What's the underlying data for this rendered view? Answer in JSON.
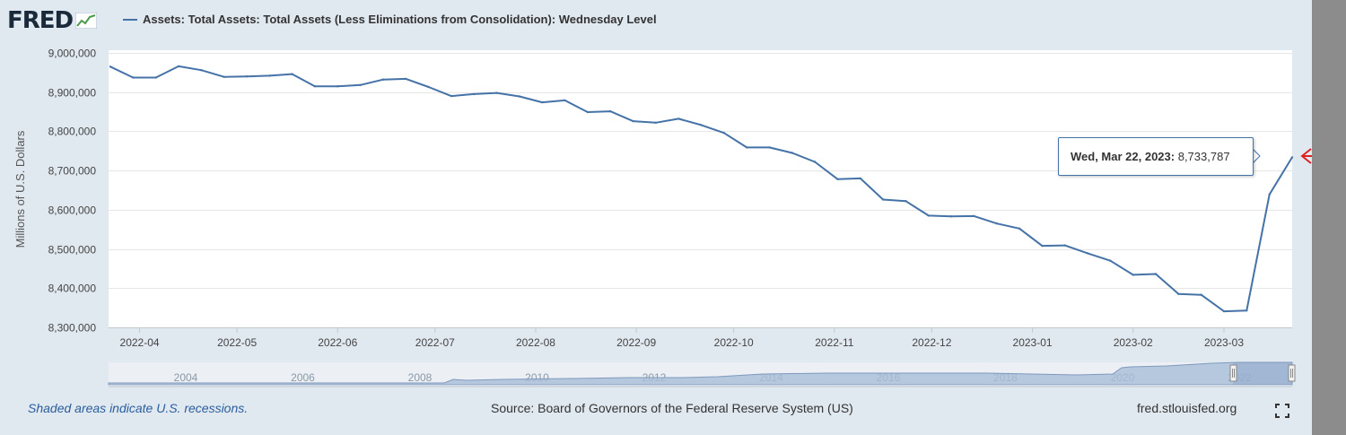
{
  "logo": {
    "text": "FRED"
  },
  "footer": {
    "recession_note": "Shaded areas indicate U.S. recessions.",
    "source": "Source: Board of Governors of the Federal Reserve System (US)",
    "site": "fred.stlouisfed.org",
    "fullscreen_icon": "fullscreen-icon"
  },
  "tooltip": {
    "date": "Wed, Mar 22, 2023:",
    "value": "8,733,787"
  },
  "annotation": {
    "arrow_color": "#e02020",
    "icon": "left-arrow-icon"
  },
  "colors": {
    "series": "#4572a7",
    "panel": "#e1e9f0",
    "navigator_fill": "#a9bed8"
  },
  "navigator": {
    "labels": [
      "2004",
      "2006",
      "2008",
      "2010",
      "2012",
      "2014",
      "2016",
      "2018",
      "2020",
      "2022"
    ]
  },
  "chart_data": {
    "type": "line",
    "title": "",
    "xlabel": "",
    "ylabel": "Millions of U.S. Dollars",
    "ylim": [
      8300000,
      9000000
    ],
    "y_ticks": [
      "8,300,000",
      "8,400,000",
      "8,500,000",
      "8,600,000",
      "8,700,000",
      "8,800,000",
      "8,900,000",
      "9,000,000"
    ],
    "x_ticks": [
      "2022-04",
      "2022-05",
      "2022-06",
      "2022-07",
      "2022-08",
      "2022-09",
      "2022-10",
      "2022-11",
      "2022-12",
      "2023-01",
      "2023-02",
      "2023-03"
    ],
    "xlim": [
      "2022-03-23",
      "2023-03-22"
    ],
    "grid": true,
    "legend_position": "top",
    "series": [
      {
        "name": "Assets: Total Assets: Total Assets (Less Eliminations from Consolidation): Wednesday Level",
        "x": [
          "2022-03-23",
          "2022-03-30",
          "2022-04-06",
          "2022-04-13",
          "2022-04-20",
          "2022-04-27",
          "2022-05-04",
          "2022-05-11",
          "2022-05-18",
          "2022-05-25",
          "2022-06-01",
          "2022-06-08",
          "2022-06-15",
          "2022-06-22",
          "2022-06-29",
          "2022-07-06",
          "2022-07-13",
          "2022-07-20",
          "2022-07-27",
          "2022-08-03",
          "2022-08-10",
          "2022-08-17",
          "2022-08-24",
          "2022-08-31",
          "2022-09-07",
          "2022-09-14",
          "2022-09-21",
          "2022-09-28",
          "2022-10-05",
          "2022-10-12",
          "2022-10-19",
          "2022-10-26",
          "2022-11-02",
          "2022-11-09",
          "2022-11-16",
          "2022-11-23",
          "2022-11-30",
          "2022-12-07",
          "2022-12-14",
          "2022-12-21",
          "2022-12-28",
          "2023-01-04",
          "2023-01-11",
          "2023-01-18",
          "2023-01-25",
          "2023-02-01",
          "2023-02-08",
          "2023-02-15",
          "2023-02-22",
          "2023-03-01",
          "2023-03-08",
          "2023-03-15",
          "2023-03-22"
        ],
        "values": [
          8965000,
          8937000,
          8937000,
          8966000,
          8956000,
          8939000,
          8940000,
          8942000,
          8946000,
          8915000,
          8915000,
          8918000,
          8932000,
          8934000,
          8913000,
          8890000,
          8895000,
          8898000,
          8889000,
          8874000,
          8879000,
          8849000,
          8851000,
          8826000,
          8822000,
          8832000,
          8816000,
          8796000,
          8759000,
          8759000,
          8745000,
          8722000,
          8678000,
          8680000,
          8626000,
          8622000,
          8585000,
          8583000,
          8584000,
          8565000,
          8552000,
          8508000,
          8509000,
          8489000,
          8470000,
          8434000,
          8436000,
          8385000,
          8383000,
          8341000,
          8343000,
          8639000,
          8733787
        ]
      }
    ]
  }
}
